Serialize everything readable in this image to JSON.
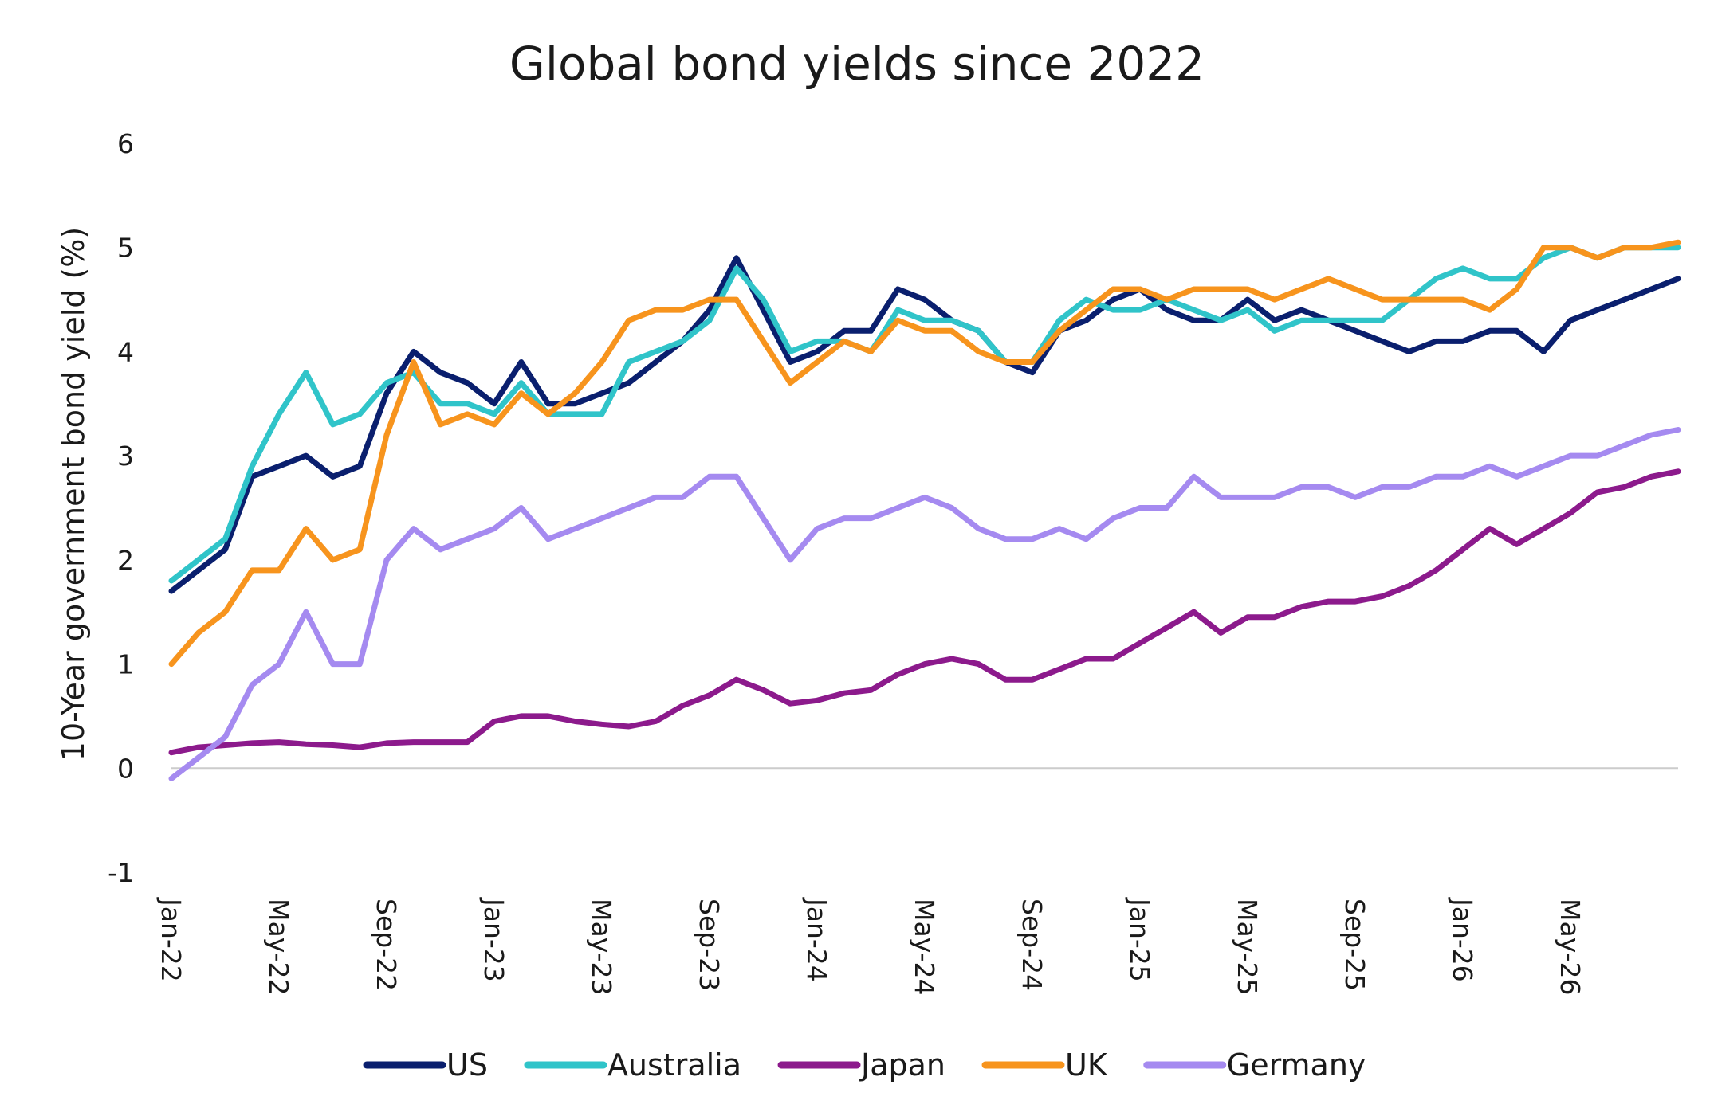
{
  "chart_data": {
    "type": "line",
    "title": "Global bond yields since 2022",
    "ylabel": "10-Year government bond yield (%)",
    "xlabel": "",
    "ylim": [
      -1,
      6
    ],
    "yticks": [
      "6",
      "5",
      "4",
      "3",
      "2",
      "1",
      "0",
      "-1"
    ],
    "yticks_values": [
      6,
      5,
      4,
      3,
      2,
      1,
      0,
      -1
    ],
    "xlim": [
      "2022-01",
      "2026-09"
    ],
    "xticks": [
      "Jan-22",
      "May-22",
      "Sep-22",
      "Jan-23",
      "May-23",
      "Sep-23",
      "Jan-24",
      "May-24",
      "Sep-24",
      "Jan-25",
      "May-25",
      "Sep-25",
      "Jan-26",
      "May-26"
    ],
    "xticks_values": [
      "2022-01",
      "2022-05",
      "2022-09",
      "2023-01",
      "2023-05",
      "2023-09",
      "2024-01",
      "2024-05",
      "2024-09",
      "2025-01",
      "2025-05",
      "2025-09",
      "2026-01",
      "2026-05"
    ],
    "grid": false,
    "legend_position": "bottom",
    "x": [
      "2022-01",
      "2022-02",
      "2022-03",
      "2022-04",
      "2022-05",
      "2022-06",
      "2022-07",
      "2022-08",
      "2022-09",
      "2022-10",
      "2022-11",
      "2022-12",
      "2023-01",
      "2023-02",
      "2023-03",
      "2023-04",
      "2023-05",
      "2023-06",
      "2023-07",
      "2023-08",
      "2023-09",
      "2023-10",
      "2023-11",
      "2023-12",
      "2024-01",
      "2024-02",
      "2024-03",
      "2024-04",
      "2024-05",
      "2024-06",
      "2024-07",
      "2024-08",
      "2024-09",
      "2024-10",
      "2024-11",
      "2024-12",
      "2025-01",
      "2025-02",
      "2025-03",
      "2025-04",
      "2025-05",
      "2025-06",
      "2025-07",
      "2025-08",
      "2025-09",
      "2025-10",
      "2025-11",
      "2025-12",
      "2026-01",
      "2026-02",
      "2026-03",
      "2026-04",
      "2026-05",
      "2026-06",
      "2026-07",
      "2026-08",
      "2026-09"
    ],
    "series": [
      {
        "name": "US",
        "color": "#0a1f6e",
        "values": [
          1.7,
          1.9,
          2.1,
          2.8,
          2.9,
          3.0,
          2.8,
          2.9,
          3.6,
          4.0,
          3.8,
          3.7,
          3.5,
          3.9,
          3.5,
          3.5,
          3.6,
          3.7,
          3.9,
          4.1,
          4.4,
          4.9,
          4.4,
          3.9,
          4.0,
          4.2,
          4.2,
          4.6,
          4.5,
          4.3,
          4.2,
          3.9,
          3.8,
          4.2,
          4.3,
          4.5,
          4.6,
          4.4,
          4.3,
          4.3,
          4.5,
          4.3,
          4.4,
          4.3,
          4.2,
          4.1,
          4.0,
          4.1,
          4.1,
          4.2,
          4.2,
          4.0,
          4.3,
          4.4,
          4.5,
          4.6,
          4.7
        ]
      },
      {
        "name": "Australia",
        "color": "#30c4c9",
        "values": [
          1.8,
          2.0,
          2.2,
          2.9,
          3.4,
          3.8,
          3.3,
          3.4,
          3.7,
          3.8,
          3.5,
          3.5,
          3.4,
          3.7,
          3.4,
          3.4,
          3.4,
          3.9,
          4.0,
          4.1,
          4.3,
          4.8,
          4.5,
          4.0,
          4.1,
          4.1,
          4.0,
          4.4,
          4.3,
          4.3,
          4.2,
          3.9,
          3.9,
          4.3,
          4.5,
          4.4,
          4.4,
          4.5,
          4.4,
          4.3,
          4.4,
          4.2,
          4.3,
          4.3,
          4.3,
          4.3,
          4.5,
          4.7,
          4.8,
          4.7,
          4.7,
          4.9,
          5.0,
          4.9,
          5.0,
          5.0,
          5.0
        ]
      },
      {
        "name": "Japan",
        "color": "#8c1a8c",
        "values": [
          0.15,
          0.2,
          0.22,
          0.24,
          0.25,
          0.23,
          0.22,
          0.2,
          0.24,
          0.25,
          0.25,
          0.25,
          0.45,
          0.5,
          0.5,
          0.45,
          0.42,
          0.4,
          0.45,
          0.6,
          0.7,
          0.85,
          0.75,
          0.62,
          0.65,
          0.72,
          0.75,
          0.9,
          1.0,
          1.05,
          1.0,
          0.85,
          0.85,
          0.95,
          1.05,
          1.05,
          1.2,
          1.35,
          1.5,
          1.3,
          1.45,
          1.45,
          1.55,
          1.6,
          1.6,
          1.65,
          1.75,
          1.9,
          2.1,
          2.3,
          2.15,
          2.3,
          2.45,
          2.65,
          2.7,
          2.8,
          2.85
        ]
      },
      {
        "name": "UK",
        "color": "#f7941d",
        "values": [
          1.0,
          1.3,
          1.5,
          1.9,
          1.9,
          2.3,
          2.0,
          2.1,
          3.2,
          3.9,
          3.3,
          3.4,
          3.3,
          3.6,
          3.4,
          3.6,
          3.9,
          4.3,
          4.4,
          4.4,
          4.5,
          4.5,
          4.1,
          3.7,
          3.9,
          4.1,
          4.0,
          4.3,
          4.2,
          4.2,
          4.0,
          3.9,
          3.9,
          4.2,
          4.4,
          4.6,
          4.6,
          4.5,
          4.6,
          4.6,
          4.6,
          4.5,
          4.6,
          4.7,
          4.6,
          4.5,
          4.5,
          4.5,
          4.5,
          4.4,
          4.6,
          5.0,
          5.0,
          4.9,
          5.0,
          5.0,
          5.05
        ]
      },
      {
        "name": "Germany",
        "color": "#a58af0",
        "values": [
          -0.1,
          0.1,
          0.3,
          0.8,
          1.0,
          1.5,
          1.0,
          1.0,
          2.0,
          2.3,
          2.1,
          2.2,
          2.3,
          2.5,
          2.2,
          2.3,
          2.4,
          2.5,
          2.6,
          2.6,
          2.8,
          2.8,
          2.4,
          2.0,
          2.3,
          2.4,
          2.4,
          2.5,
          2.6,
          2.5,
          2.3,
          2.2,
          2.2,
          2.3,
          2.2,
          2.4,
          2.5,
          2.5,
          2.8,
          2.6,
          2.6,
          2.6,
          2.7,
          2.7,
          2.6,
          2.7,
          2.7,
          2.8,
          2.8,
          2.9,
          2.8,
          2.9,
          3.0,
          3.0,
          3.1,
          3.2,
          3.25
        ]
      }
    ]
  }
}
